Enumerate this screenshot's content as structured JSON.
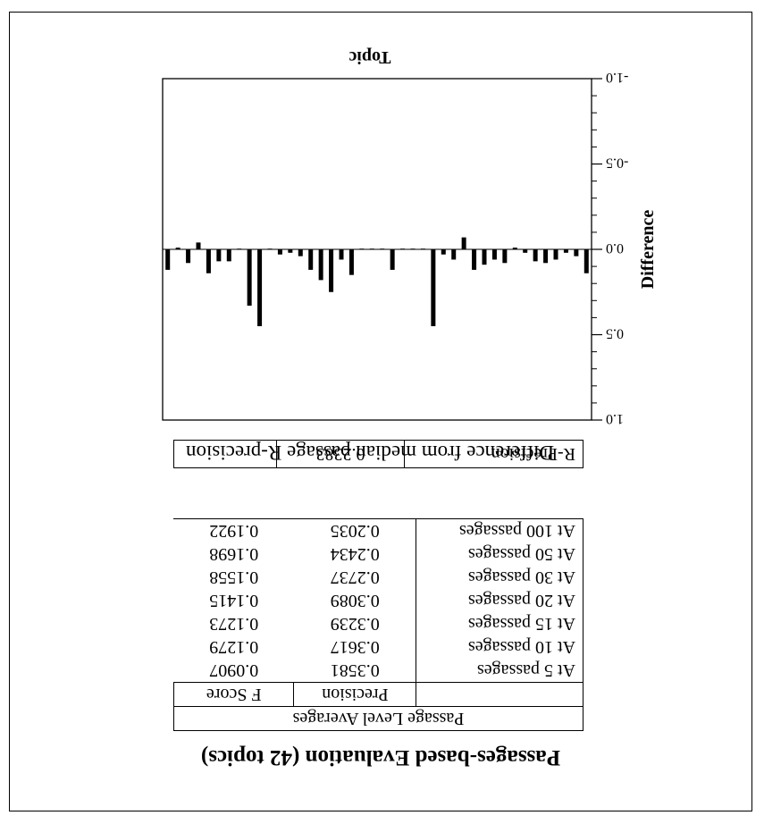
{
  "title": "Passages-based Evaluation (42 topics)",
  "averages_table": {
    "caption": "Passage Level Averages",
    "col_headers": [
      "",
      "Precision",
      "F Score"
    ],
    "rows": [
      {
        "label": "At 5 passages",
        "precision": "0.3581",
        "fscore": "0.0907"
      },
      {
        "label": "At 10 passages",
        "precision": "0.3617",
        "fscore": "0.1279"
      },
      {
        "label": "At 15 passages",
        "precision": "0.3239",
        "fscore": "0.1273"
      },
      {
        "label": "At 20 passages",
        "precision": "0.3089",
        "fscore": "0.1415"
      },
      {
        "label": "At 30 passages",
        "precision": "0.2737",
        "fscore": "0.1558"
      },
      {
        "label": "At 50 passages",
        "precision": "0.2434",
        "fscore": "0.1698"
      },
      {
        "label": "At 100 passages",
        "precision": "0.2035",
        "fscore": "0.1922"
      }
    ]
  },
  "rprecision": {
    "label": "R-Precision",
    "value": "0.2383"
  },
  "chart_data": {
    "type": "bar",
    "title": "Difference from median passage R-precision",
    "xlabel": "Topic",
    "ylabel": "Difference",
    "ylim": [
      -1.0,
      1.0
    ],
    "yticks": [
      "1.0",
      "0.5",
      "0.0",
      "-0.5",
      "-1.0"
    ],
    "orientation_note": "printed upside down",
    "values": [
      0.12,
      -0.01,
      0.08,
      -0.04,
      0.14,
      0.07,
      0.07,
      0.0,
      0.33,
      0.45,
      0.0,
      0.03,
      0.02,
      0.04,
      0.12,
      0.18,
      0.25,
      0.06,
      0.15,
      0.0,
      0.0,
      0.0,
      0.12,
      0.0,
      0.0,
      0.0,
      0.45,
      0.03,
      0.06,
      -0.07,
      0.12,
      0.09,
      0.06,
      0.08,
      -0.01,
      0.02,
      0.07,
      0.08,
      0.06,
      0.02,
      0.04,
      0.14
    ]
  }
}
